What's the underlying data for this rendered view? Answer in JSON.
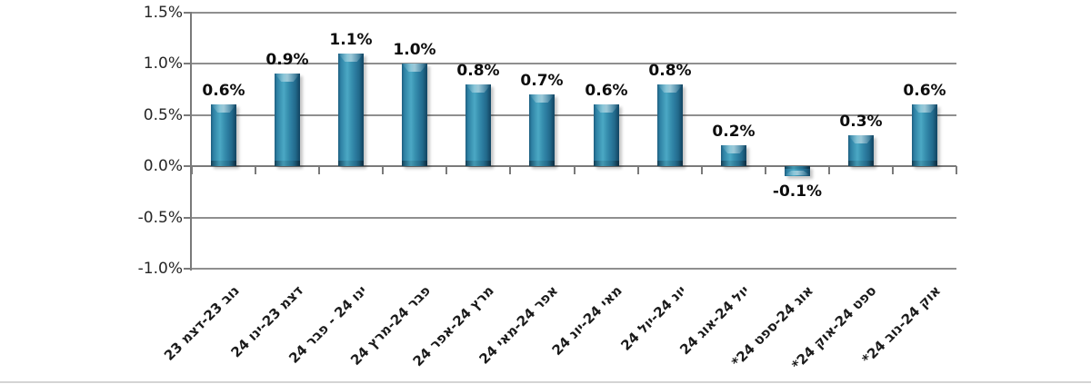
{
  "chart_data": {
    "type": "bar",
    "categories": [
      "נוב 23-דצמ 23",
      "דצמ 23-ינו 24",
      "ינו 24 - פבר 24",
      "פבר 24-מרץ 24",
      "מרץ 24-אפר 24",
      "אפר 24-מאי 24",
      "מאי 24-יונ 24",
      "יונ 24-יול 24",
      "יול 24-אוג 24",
      "אוג 24-ספט 24*",
      "ספט 24-אוק 24*",
      "אוק 24-נוב 24*"
    ],
    "values": [
      0.6,
      0.9,
      1.1,
      1.0,
      0.8,
      0.7,
      0.6,
      0.8,
      0.2,
      -0.1,
      0.3,
      0.6
    ],
    "data_labels": [
      "0.6%",
      "0.9%",
      "1.1%",
      "1.0%",
      "0.8%",
      "0.7%",
      "0.6%",
      "0.8%",
      "0.2%",
      "-0.1%",
      "0.3%",
      "0.6%"
    ],
    "y_tick_labels": [
      "1.5%",
      "1.0%",
      "0.5%",
      "0.0%",
      "-0.5%",
      "-1.0%"
    ],
    "y_tick_values": [
      1.5,
      1.0,
      0.5,
      0.0,
      -0.5,
      -1.0
    ],
    "ylim": [
      -1.0,
      1.5
    ],
    "grid": true,
    "legend": false,
    "rtl": true,
    "x_label_rotation_deg": 45,
    "colors": {
      "bar_main": "#2E81A4",
      "bar_light": "#4BA8C4",
      "bar_dark": "#174F6E",
      "gridline": "#8F8F8F",
      "axis": "#7A7A7A",
      "data_label": "#0D0D0D",
      "axis_label": "#262626"
    }
  }
}
